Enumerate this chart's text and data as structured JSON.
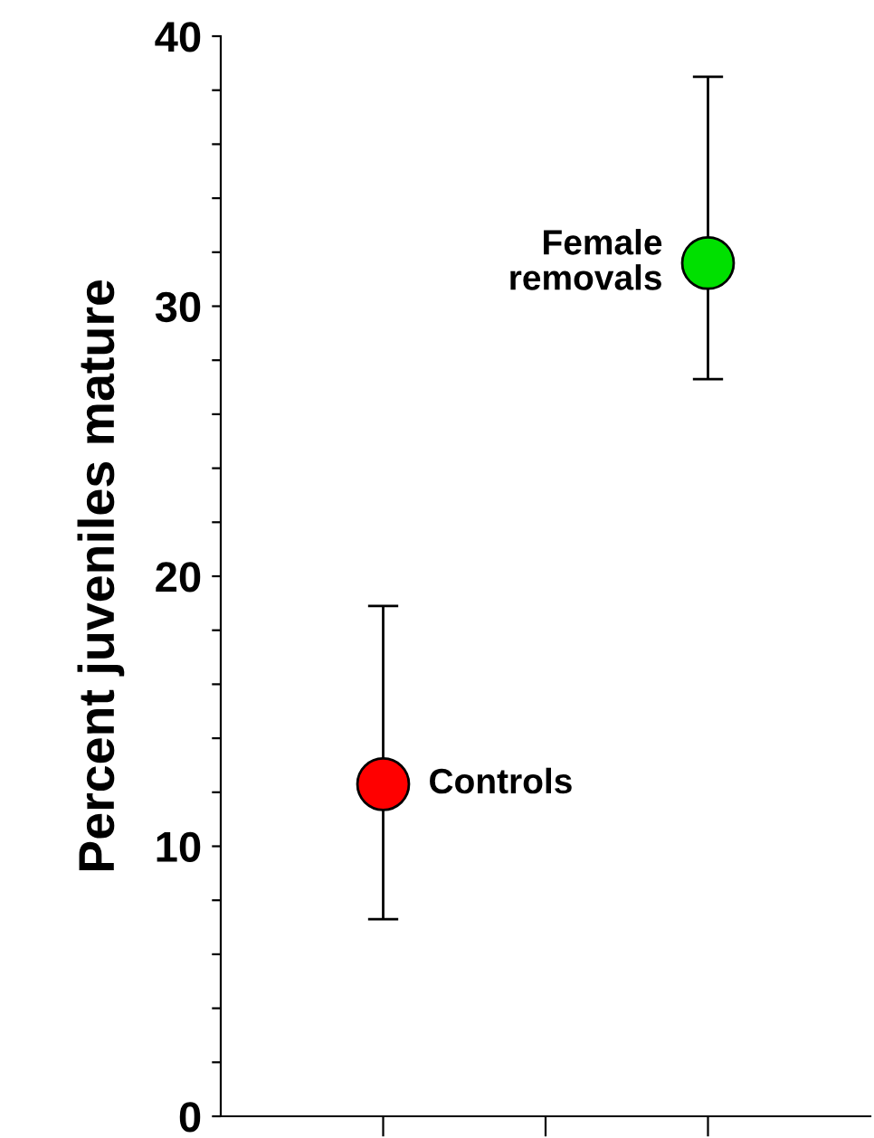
{
  "chart_data": {
    "type": "scatter",
    "ylabel": "Percent juveniles mature",
    "categories": [
      null,
      null,
      null
    ],
    "values": [
      12.3,
      null,
      31.6
    ],
    "colors": [
      "#ff0000",
      null,
      "#00e000"
    ],
    "errors": [
      [
        7.3,
        18.9
      ],
      null,
      [
        27.3,
        38.5
      ]
    ],
    "ylim": [
      0,
      40
    ],
    "yticks": [
      0,
      {
        "value": 2,
        "label": null
      },
      {
        "value": 4,
        "label": null
      },
      {
        "value": 6,
        "label": null
      },
      {
        "value": 8,
        "label": null
      },
      10,
      {
        "value": 12,
        "label": null
      },
      {
        "value": 14,
        "label": null
      },
      {
        "value": 16,
        "label": null
      },
      {
        "value": 18,
        "label": null
      },
      20,
      {
        "value": 22,
        "label": null
      },
      {
        "value": 24,
        "label": null
      },
      {
        "value": 26,
        "label": null
      },
      {
        "value": 28,
        "label": null
      },
      30,
      {
        "value": 32,
        "label": null
      },
      {
        "value": 34,
        "label": null
      },
      {
        "value": 36,
        "label": null
      },
      {
        "value": 38,
        "label": null
      },
      40
    ],
    "marker": "circle",
    "grid": false,
    "legend": false,
    "annotations": [
      "Controls",
      "Female\nremovals"
    ]
  }
}
